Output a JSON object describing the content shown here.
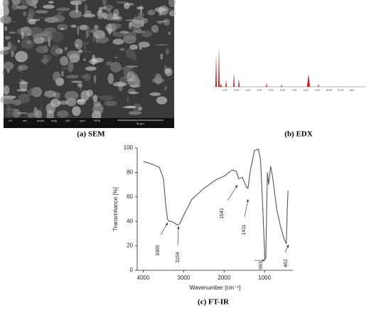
{
  "sem": {
    "caption": "(a) SEM",
    "info_bar": [
      "HV",
      "det",
      "mode",
      "mag",
      "WD",
      "spot",
      "HFW"
    ],
    "scale_bar": "30 µm"
  },
  "edx": {
    "caption": "(b) EDX",
    "axis_labels": [
      "1.00",
      "2.00",
      "3.00",
      "4.00",
      "5.00",
      "6.00",
      "7.00",
      "8.00",
      "9.00",
      "10.00",
      "11.00",
      "keV"
    ]
  },
  "chart_data": {
    "type": "line",
    "caption": "(c) FT-IR",
    "xlabel": "Wavenumber [cm⁻¹]",
    "ylabel": "Transmitance [%]",
    "x": [
      4000,
      3800,
      3600,
      3500,
      3450,
      3400,
      3365,
      3300,
      3200,
      3154,
      3100,
      3000,
      2800,
      2500,
      2200,
      2000,
      1800,
      1700,
      1641,
      1550,
      1450,
      1411,
      1350,
      1250,
      1150,
      1100,
      1050,
      1000,
      993,
      970,
      930,
      900,
      850,
      800,
      700,
      600,
      520,
      480,
      462,
      440,
      420
    ],
    "series": [
      {
        "color": "#555555",
        "values": [
          89,
          87,
          84,
          75,
          55,
          42,
          40,
          40,
          38,
          37,
          38,
          45,
          58,
          67,
          74,
          77,
          82,
          81,
          75,
          76,
          68,
          67,
          82,
          98,
          99,
          90,
          55,
          15,
          9,
          10,
          80,
          70,
          85,
          76,
          50,
          35,
          26,
          23,
          22,
          50,
          65
        ]
      }
    ],
    "xlim": [
      4150,
      300
    ],
    "ylim": [
      0,
      100
    ],
    "xticks": [
      4000,
      3000,
      2000,
      1000
    ],
    "yticks": [
      0,
      20,
      40,
      60,
      80,
      100
    ],
    "annotations": [
      "3365",
      "3154",
      "1641",
      "1411",
      "993",
      "462"
    ]
  }
}
